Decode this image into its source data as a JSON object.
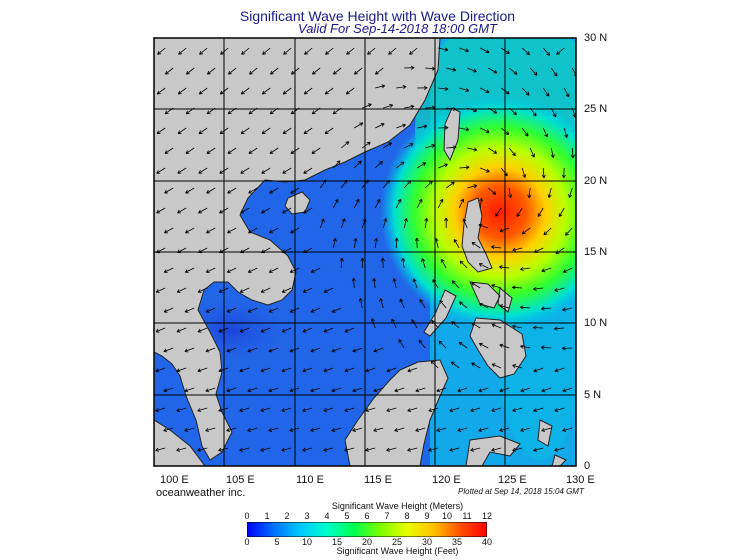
{
  "title": "Significant Wave Height with Wave Direction",
  "valid": "Valid For Sep-14-2018 18:00 GMT",
  "lat_labels": [
    "30 N",
    "25 N",
    "20 N",
    "15 N",
    "10 N",
    "5 N",
    "0"
  ],
  "lon_labels": [
    "100 E",
    "105 E",
    "110 E",
    "115 E",
    "120 E",
    "125 E",
    "130 E"
  ],
  "map_extent": {
    "lon": [
      100,
      130
    ],
    "lat": [
      0,
      30
    ]
  },
  "brand": "oceanweather inc.",
  "plotted": "Plotted at Sep 14, 2018 15:04 GMT",
  "legend": {
    "title_meters": "Significant Wave Height (Meters)",
    "title_feet": "Significant Wave Height (Feet)",
    "meters_ticks": [
      "0",
      "1",
      "2",
      "3",
      "4",
      "5",
      "6",
      "7",
      "8",
      "9",
      "10",
      "11",
      "12"
    ],
    "feet_ticks": [
      "0",
      "5",
      "10",
      "15",
      "20",
      "25",
      "30",
      "35",
      "40"
    ],
    "colors": [
      "#0000ff",
      "#0070ff",
      "#00c8ff",
      "#00ffcc",
      "#00ff50",
      "#7cff00",
      "#e8ff00",
      "#ffc000",
      "#ff5000",
      "#ff0000"
    ]
  },
  "colors": {
    "land": "#c8c8c8",
    "sea_low": "#1e55e6",
    "sea_mid": "#00b8e8",
    "storm_core": "#ff2a00",
    "title": "#1a1a8c"
  },
  "storm_center": {
    "lon": 123.5,
    "lat": 18.2
  }
}
